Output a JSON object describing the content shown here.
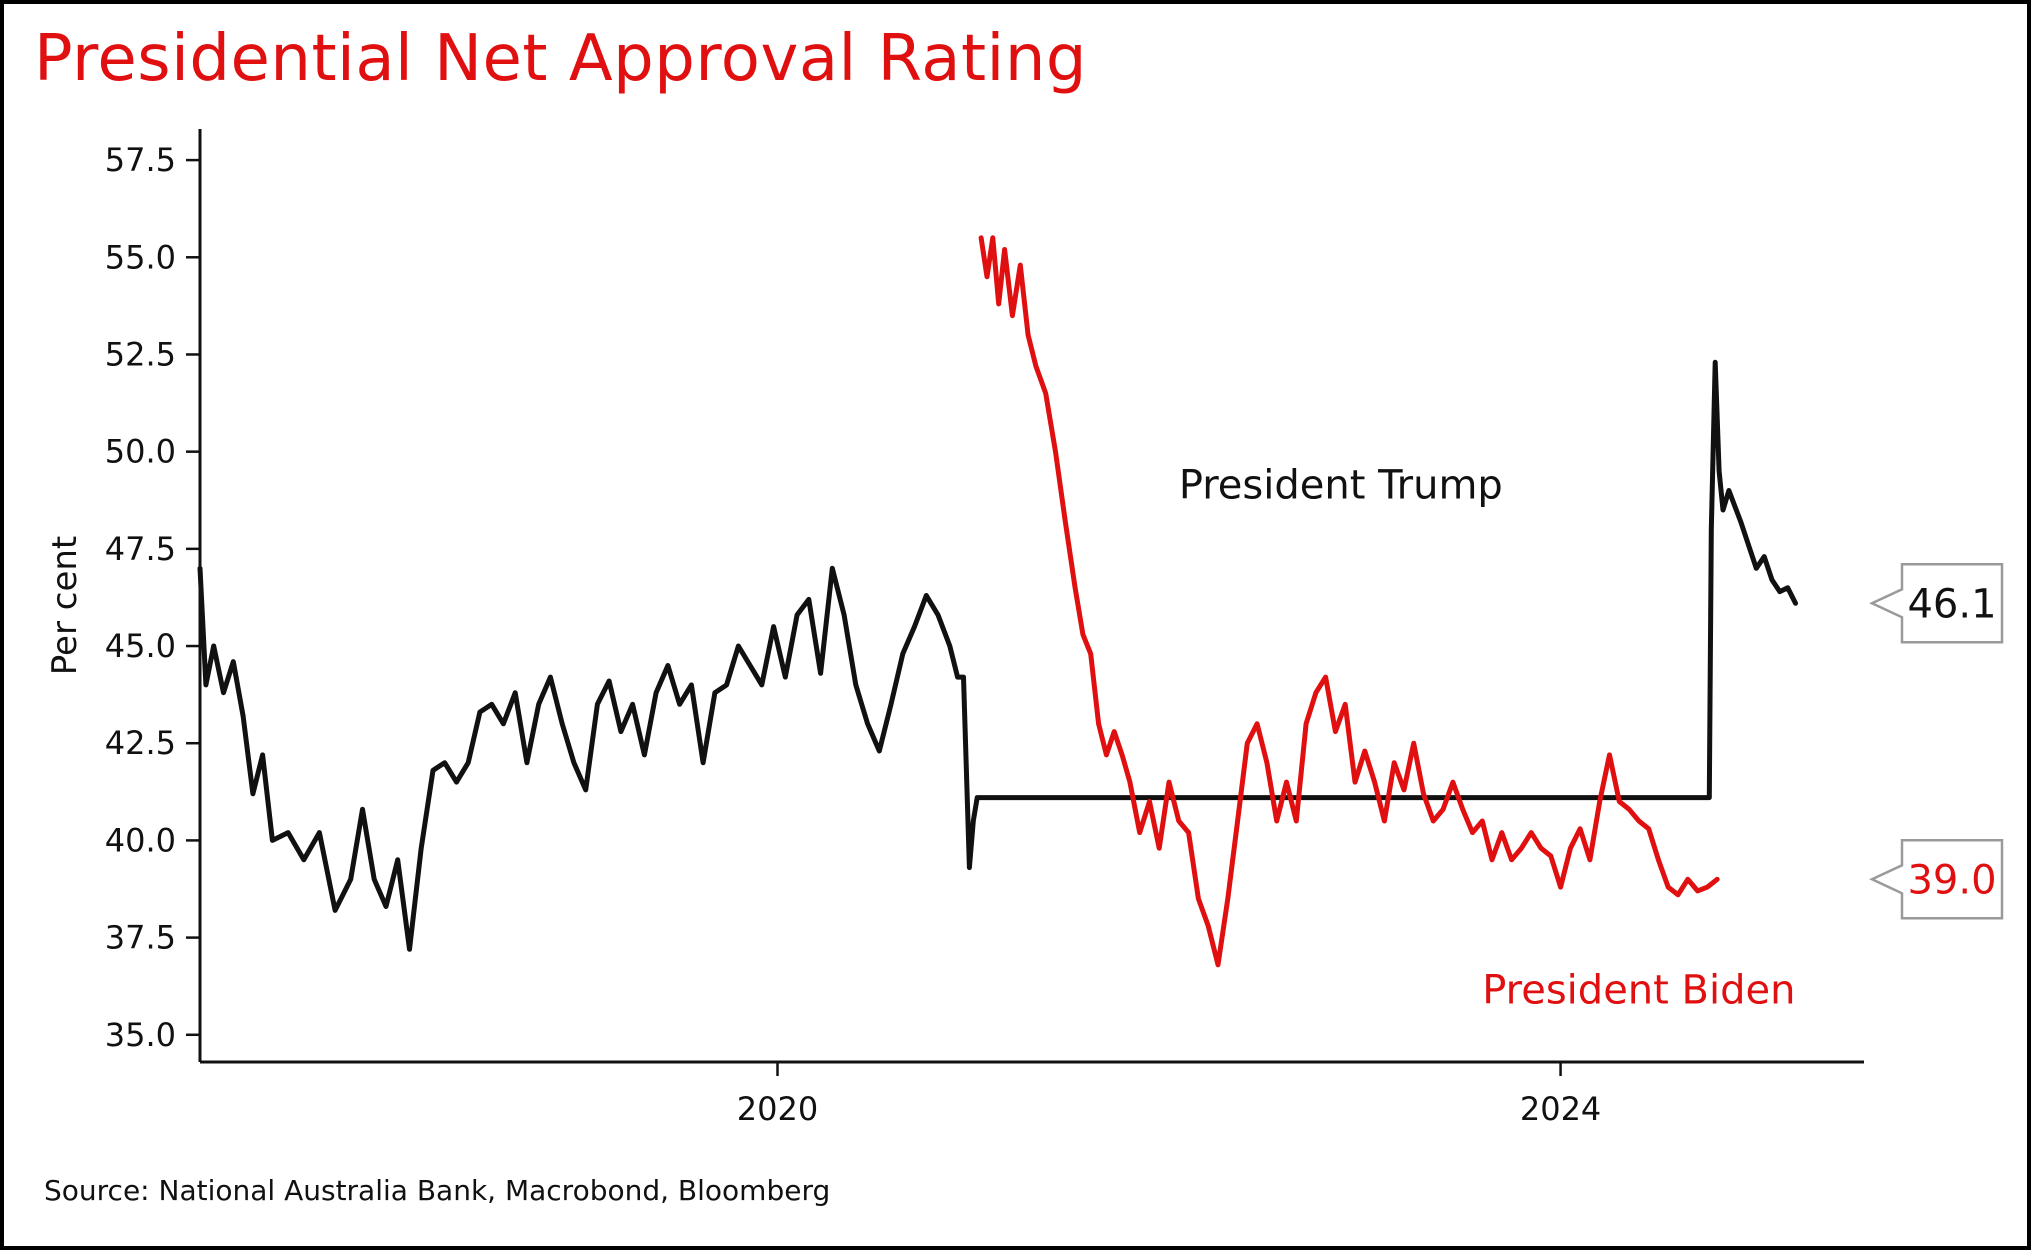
{
  "title": "Presidential Net Approval Rating",
  "source": "Source: National Australia Bank, Macrobond, Bloomberg",
  "colors": {
    "title": "#e01010",
    "trump": "#111111",
    "biden": "#e01010",
    "axis": "#111111",
    "callout_border": "#9a9a9a"
  },
  "chart_data": {
    "type": "line",
    "title": "Presidential Net Approval Rating",
    "xlabel": "",
    "ylabel": "Per cent",
    "ylim": [
      34.3,
      58.3
    ],
    "xlim": [
      2017.05,
      2025.55
    ],
    "yticks": [
      35.0,
      37.5,
      40.0,
      42.5,
      45.0,
      47.5,
      50.0,
      52.5,
      55.0,
      57.5
    ],
    "ytick_labels": [
      "35.0",
      "37.5",
      "40.0",
      "42.5",
      "45.0",
      "47.5",
      "50.0",
      "52.5",
      "55.0",
      "57.5"
    ],
    "xticks": [
      2020,
      2024
    ],
    "xtick_labels": [
      "2020",
      "2024"
    ],
    "grid": false,
    "legend": "none",
    "series": [
      {
        "name": "President Trump",
        "x": [
          2017.05,
          2017.08,
          2017.12,
          2017.17,
          2017.22,
          2017.27,
          2017.32,
          2017.37,
          2017.42,
          2017.5,
          2017.58,
          2017.66,
          2017.74,
          2017.82,
          2017.88,
          2017.94,
          2018.0,
          2018.06,
          2018.12,
          2018.18,
          2018.24,
          2018.3,
          2018.36,
          2018.42,
          2018.48,
          2018.54,
          2018.6,
          2018.66,
          2018.72,
          2018.78,
          2018.84,
          2018.9,
          2018.96,
          2019.02,
          2019.08,
          2019.14,
          2019.2,
          2019.26,
          2019.32,
          2019.38,
          2019.44,
          2019.5,
          2019.56,
          2019.62,
          2019.68,
          2019.74,
          2019.8,
          2019.86,
          2019.92,
          2019.98,
          2020.04,
          2020.1,
          2020.16,
          2020.22,
          2020.28,
          2020.34,
          2020.4,
          2020.46,
          2020.52,
          2020.58,
          2020.64,
          2020.7,
          2020.76,
          2020.82,
          2020.88,
          2020.92,
          2020.95,
          2020.98,
          2021.0,
          2021.02,
          2021.04,
          2024.76,
          2024.76,
          2024.77,
          2024.79,
          2024.81,
          2024.83,
          2024.86,
          2024.89,
          2024.92,
          2024.96,
          2025.0,
          2025.04,
          2025.08,
          2025.12,
          2025.16,
          2025.2
        ],
        "y": [
          47.0,
          44.0,
          45.0,
          43.8,
          44.6,
          43.2,
          41.2,
          42.2,
          40.0,
          40.2,
          39.5,
          40.2,
          38.2,
          39.0,
          40.8,
          39.0,
          38.3,
          39.5,
          37.2,
          39.8,
          41.8,
          42.0,
          41.5,
          42.0,
          43.3,
          43.5,
          43.0,
          43.8,
          42.0,
          43.5,
          44.2,
          43.0,
          42.0,
          41.3,
          43.5,
          44.1,
          42.8,
          43.5,
          42.2,
          43.8,
          44.5,
          43.5,
          44.0,
          42.0,
          43.8,
          44.0,
          45.0,
          44.5,
          44.0,
          45.5,
          44.2,
          45.8,
          46.2,
          44.3,
          47.0,
          45.8,
          44.0,
          43.0,
          42.3,
          43.5,
          44.8,
          45.5,
          46.3,
          45.8,
          45.0,
          44.2,
          44.2,
          39.3,
          40.5,
          41.1,
          41.1,
          41.1,
          41.1,
          48.0,
          52.3,
          49.5,
          48.5,
          49.0,
          48.6,
          48.2,
          47.6,
          47.0,
          47.3,
          46.7,
          46.4,
          46.5,
          46.1
        ]
      },
      {
        "name": "President Biden",
        "x": [
          2021.04,
          2021.07,
          2021.1,
          2021.13,
          2021.16,
          2021.2,
          2021.24,
          2021.28,
          2021.32,
          2021.37,
          2021.42,
          2021.47,
          2021.52,
          2021.56,
          2021.6,
          2021.64,
          2021.68,
          2021.72,
          2021.76,
          2021.8,
          2021.85,
          2021.9,
          2021.95,
          2022.0,
          2022.05,
          2022.1,
          2022.15,
          2022.2,
          2022.25,
          2022.3,
          2022.35,
          2022.4,
          2022.45,
          2022.5,
          2022.55,
          2022.6,
          2022.65,
          2022.7,
          2022.75,
          2022.8,
          2022.85,
          2022.9,
          2022.95,
          2023.0,
          2023.05,
          2023.1,
          2023.15,
          2023.2,
          2023.25,
          2023.3,
          2023.35,
          2023.4,
          2023.45,
          2023.5,
          2023.55,
          2023.6,
          2023.65,
          2023.7,
          2023.75,
          2023.8,
          2023.85,
          2023.9,
          2023.95,
          2024.0,
          2024.05,
          2024.1,
          2024.15,
          2024.2,
          2024.25,
          2024.3,
          2024.35,
          2024.4,
          2024.45,
          2024.5,
          2024.55,
          2024.6,
          2024.65,
          2024.7,
          2024.75,
          2024.8
        ],
        "y": [
          55.5,
          54.5,
          55.5,
          53.8,
          55.2,
          53.5,
          54.8,
          53.0,
          52.2,
          51.5,
          50.0,
          48.2,
          46.5,
          45.3,
          44.8,
          43.0,
          42.2,
          42.8,
          42.2,
          41.5,
          40.2,
          41.0,
          39.8,
          41.5,
          40.5,
          40.2,
          38.5,
          37.8,
          36.8,
          38.5,
          40.5,
          42.5,
          43.0,
          42.0,
          40.5,
          41.5,
          40.5,
          43.0,
          43.8,
          44.2,
          42.8,
          43.5,
          41.5,
          42.3,
          41.5,
          40.5,
          42.0,
          41.3,
          42.5,
          41.2,
          40.5,
          40.8,
          41.5,
          40.8,
          40.2,
          40.5,
          39.5,
          40.2,
          39.5,
          39.8,
          40.2,
          39.8,
          39.6,
          38.8,
          39.8,
          40.3,
          39.5,
          41.0,
          42.2,
          41.0,
          40.8,
          40.5,
          40.3,
          39.5,
          38.8,
          38.6,
          39.0,
          38.7,
          38.8,
          39.0
        ]
      }
    ],
    "annotations": [
      "President Trump",
      "President Biden"
    ],
    "end_labels": [
      {
        "series": "President Trump",
        "text": "46.1",
        "value": 46.1
      },
      {
        "series": "President Biden",
        "text": "39.0",
        "value": 39.0
      }
    ]
  }
}
